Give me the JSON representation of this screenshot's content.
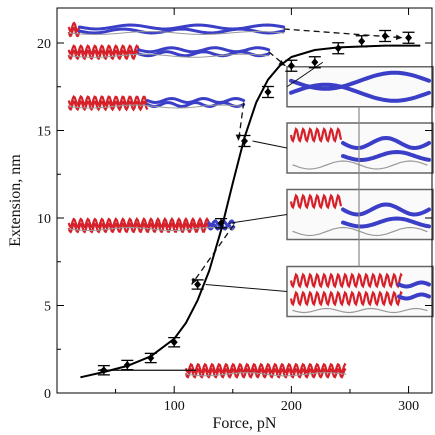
{
  "chart_data": {
    "type": "scatter",
    "xlabel": "Force, pN",
    "ylabel": "Extension, nm",
    "xlim": [
      0,
      320
    ],
    "ylim": [
      0,
      22
    ],
    "x_ticks": [
      100,
      200,
      300
    ],
    "y_ticks": [
      0,
      5,
      10,
      15,
      20
    ],
    "x_tick_labels": [
      "100",
      "200",
      "300"
    ],
    "y_tick_labels": [
      "0",
      "5",
      "10",
      "15",
      "20"
    ],
    "grid": false,
    "legend": "none",
    "series": [
      {
        "kind": "points_with_error_bars",
        "marker": "diamond",
        "color": "#000000",
        "x": [
          40,
          60,
          80,
          100,
          120,
          140,
          160,
          180,
          200,
          220,
          240,
          260,
          280,
          300
        ],
        "y": [
          1.3,
          1.6,
          2.0,
          2.9,
          6.2,
          9.7,
          14.4,
          17.2,
          18.7,
          18.9,
          19.7,
          20.1,
          20.4,
          20.3
        ],
        "err": [
          0.15,
          0.15,
          0.15,
          0.15,
          0.15,
          0.15,
          0.2,
          0.2,
          0.2,
          0.2,
          0.2,
          0.2,
          0.2,
          0.2
        ]
      },
      {
        "kind": "fit_curve",
        "color": "#000000",
        "x": [
          20,
          40,
          60,
          80,
          100,
          110,
          120,
          130,
          140,
          150,
          160,
          170,
          180,
          190,
          200,
          220,
          240,
          260,
          280,
          300,
          310
        ],
        "y": [
          0.9,
          1.2,
          1.55,
          2.1,
          3.1,
          4.0,
          5.3,
          7.0,
          9.3,
          12.0,
          14.6,
          16.6,
          17.9,
          18.7,
          19.2,
          19.6,
          19.75,
          19.8,
          19.85,
          19.85,
          19.85
        ]
      }
    ],
    "structure_colors": {
      "helix": "#d6202a",
      "sheet": "#3b3fc7",
      "coil": "#9a9a9a"
    },
    "annotations": [
      {
        "kind": "structure_snapshot",
        "x": 10,
        "y": 20.8,
        "target_x": 300,
        "target_y": 20.3,
        "arrow": "dashed"
      },
      {
        "kind": "structure_snapshot",
        "x": 10,
        "y": 19.5,
        "target_x": 200,
        "target_y": 18.7,
        "arrow": "dashed"
      },
      {
        "kind": "structure_snapshot",
        "x": 10,
        "y": 16.6,
        "target_x": 160,
        "target_y": 14.4,
        "arrow": "dashed"
      },
      {
        "kind": "structure_snapshot",
        "x": 10,
        "y": 9.6,
        "target_x": 120,
        "target_y": 6.2,
        "arrow": "dashed"
      },
      {
        "kind": "structure_snapshot",
        "x": 110,
        "y": 1.3,
        "target_x": 40,
        "target_y": 1.3,
        "arrow": "solid"
      },
      {
        "kind": "zoom_inset",
        "x": 225,
        "y": 17.5,
        "target_x": 220,
        "target_y": 18.9,
        "content": "sheet"
      },
      {
        "kind": "zoom_inset",
        "x": 225,
        "y": 14.0,
        "target_x": 160,
        "target_y": 14.4,
        "content": "helix-sheet"
      },
      {
        "kind": "zoom_inset",
        "x": 225,
        "y": 10.2,
        "target_x": 140,
        "target_y": 9.7,
        "content": "helix-sheet"
      },
      {
        "kind": "zoom_inset",
        "x": 225,
        "y": 5.8,
        "target_x": 120,
        "target_y": 6.2,
        "content": "helix"
      }
    ]
  }
}
